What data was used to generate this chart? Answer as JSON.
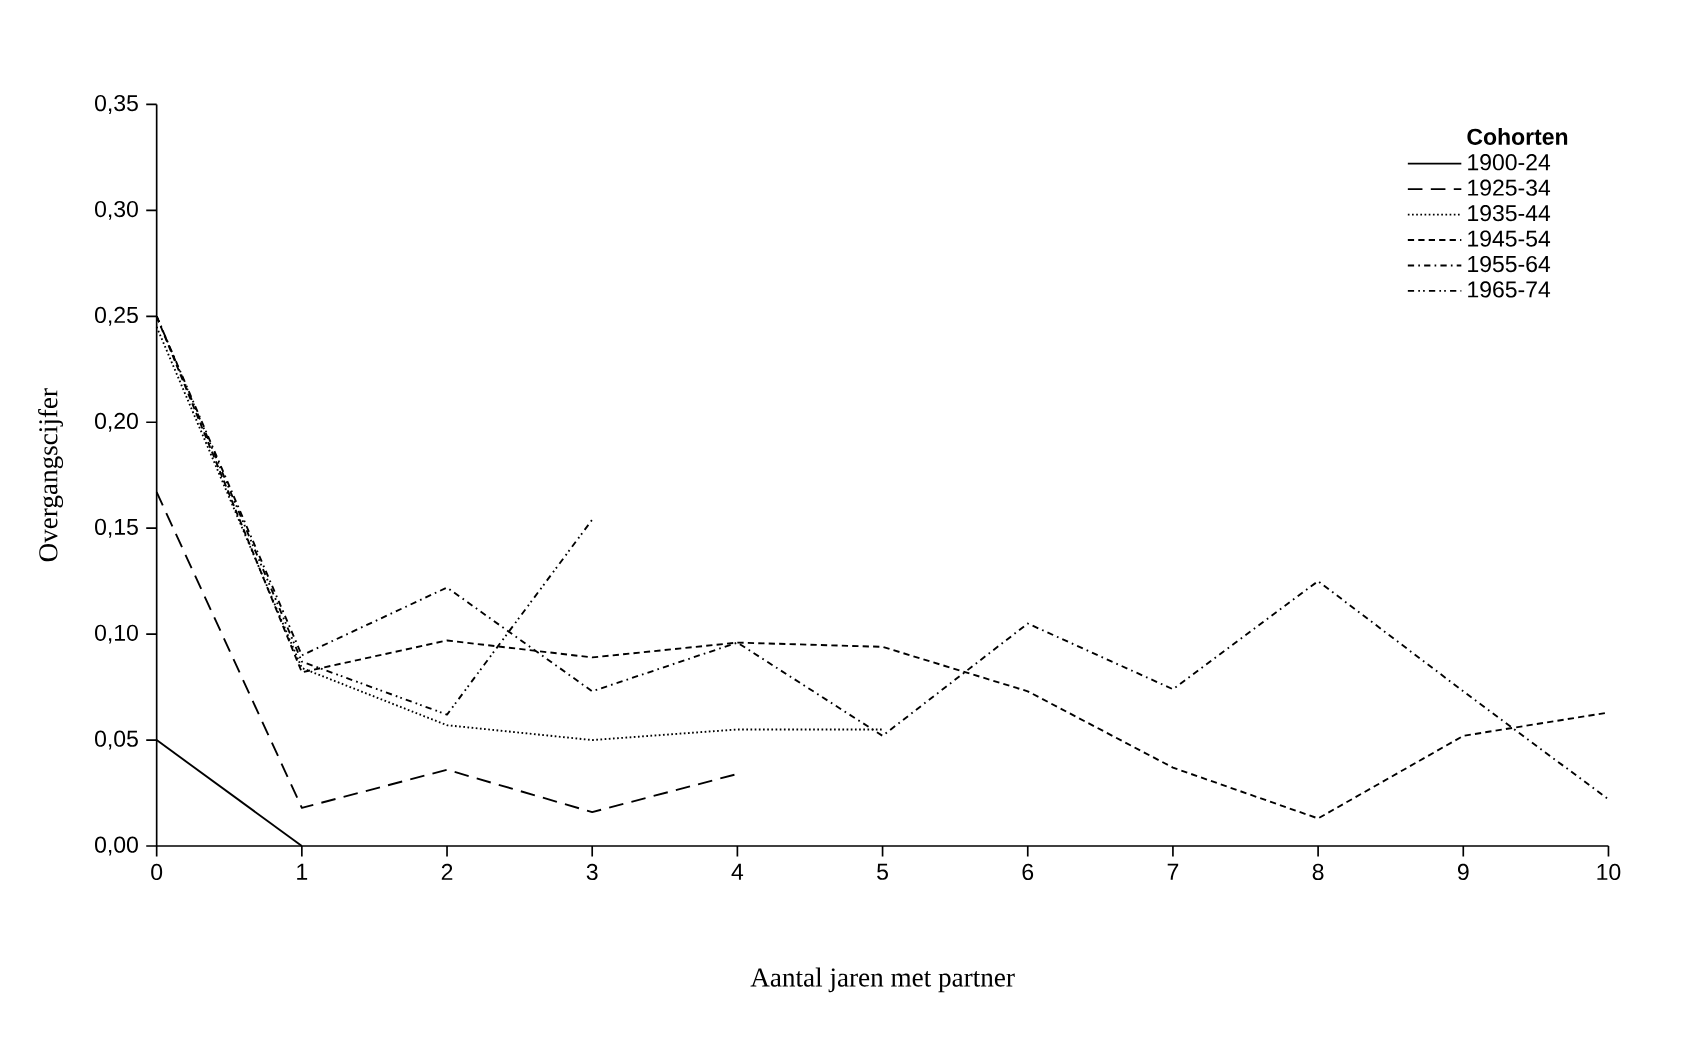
{
  "chart_data": {
    "type": "line",
    "xlabel": "Aantal jaren met partner",
    "ylabel": "Overgangscijfer",
    "legend_title": "Cohorten",
    "legend": "top right",
    "grid": false,
    "marker": "none",
    "xlim": [
      0,
      10
    ],
    "xticks": [
      0,
      1,
      2,
      3,
      4,
      5,
      6,
      7,
      8,
      9,
      10
    ],
    "ylim": [
      0,
      0.35
    ],
    "yticks": [
      {
        "value": 0,
        "label": "0,00"
      },
      {
        "value": 0.05,
        "label": "0,05"
      },
      {
        "value": 0.1,
        "label": "0,10"
      },
      {
        "value": 0.15,
        "label": "0,15"
      },
      {
        "value": 0.2,
        "label": "0,20"
      },
      {
        "value": 0.25,
        "label": "0,25"
      },
      {
        "value": 0.3,
        "label": "0,30"
      },
      {
        "value": 0.35,
        "label": "0,35"
      }
    ],
    "series": [
      {
        "name": "1900-24",
        "color": "#000000",
        "line_style": "solid",
        "x": [
          0,
          1
        ],
        "values": [
          0.05,
          0.0
        ]
      },
      {
        "name": "1925-34",
        "color": "#000000",
        "line_style": "longdashed",
        "x": [
          0,
          1,
          2,
          3,
          4
        ],
        "values": [
          0.167,
          0.018,
          0.036,
          0.016,
          0.034
        ]
      },
      {
        "name": "1935-44",
        "color": "#000000",
        "line_style": "dotted",
        "x": [
          0,
          1,
          2,
          3,
          4,
          5
        ],
        "values": [
          0.245,
          0.084,
          0.057,
          0.05,
          0.055,
          0.055
        ]
      },
      {
        "name": "1945-54",
        "color": "#000000",
        "line_style": "dashed",
        "x": [
          0,
          1,
          2,
          3,
          4,
          5,
          6,
          7,
          8,
          9,
          10
        ],
        "values": [
          0.25,
          0.082,
          0.097,
          0.089,
          0.096,
          0.094,
          0.073,
          0.037,
          0.013,
          0.052,
          0.063
        ]
      },
      {
        "name": "1955-64",
        "color": "#000000",
        "line_style": "dashdot",
        "x": [
          0,
          1,
          2,
          3,
          4,
          5,
          6,
          7,
          8,
          9,
          10
        ],
        "values": [
          0.25,
          0.09,
          0.122,
          0.073,
          0.096,
          0.052,
          0.105,
          0.074,
          0.125,
          0.073,
          0.022
        ]
      },
      {
        "name": "1965-74",
        "color": "#000000",
        "line_style": "dashdotdot",
        "x": [
          0,
          1,
          2,
          3
        ],
        "values": [
          0.25,
          0.087,
          0.062,
          0.154
        ]
      }
    ]
  }
}
